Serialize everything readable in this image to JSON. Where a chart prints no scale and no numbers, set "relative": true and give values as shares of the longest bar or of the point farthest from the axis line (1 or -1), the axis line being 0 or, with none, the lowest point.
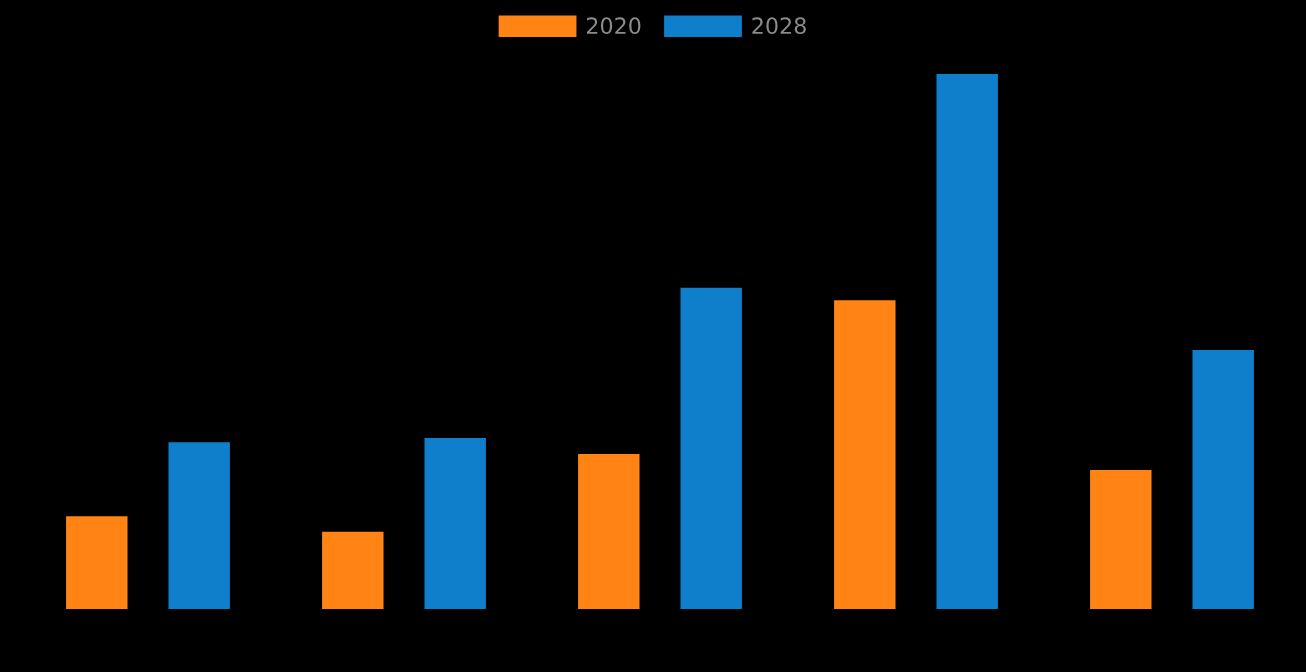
{
  "chart_data": {
    "type": "bar",
    "relative": true,
    "categories": [
      null,
      null,
      null,
      null,
      null
    ],
    "series": [
      {
        "name": "2020",
        "color": "#ff8413",
        "values": [
          0.175,
          0.146,
          0.291,
          0.578,
          0.261
        ]
      },
      {
        "name": "2028",
        "color": "#0f7fcb",
        "values": [
          0.313,
          0.321,
          0.601,
          1,
          0.485
        ]
      }
    ],
    "legend": "top",
    "grid": false
  }
}
